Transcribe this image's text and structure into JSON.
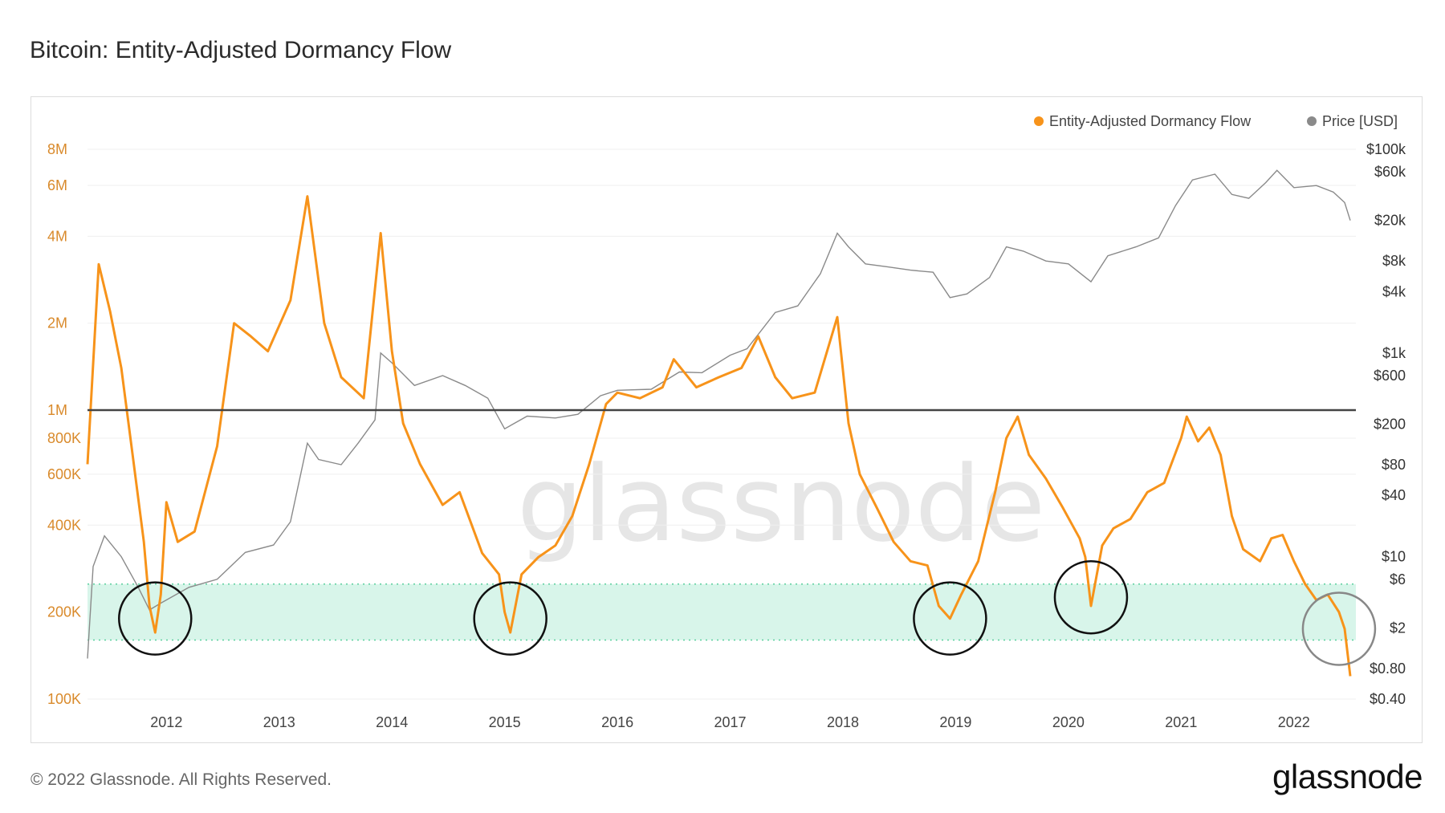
{
  "title": "Bitcoin: Entity-Adjusted Dormancy Flow",
  "footer": {
    "copyright": "© 2022 Glassnode. All Rights Reserved.",
    "logo": "glassnode"
  },
  "watermark": "glassnode",
  "colors": {
    "dormancy": "#f7931a",
    "price": "#8a8a8a",
    "band": "#d8f5ea",
    "hline": "#444444"
  },
  "chart_data": {
    "type": "line",
    "title": "Bitcoin: Entity-Adjusted Dormancy Flow",
    "legend": {
      "placement": "top-right",
      "entries": [
        "Entity-Adjusted Dormancy Flow",
        "Price [USD]"
      ]
    },
    "x_ticks": [
      "2012",
      "2013",
      "2014",
      "2015",
      "2016",
      "2017",
      "2018",
      "2019",
      "2020",
      "2021",
      "2022"
    ],
    "y_left": {
      "scale": "log",
      "range": [
        100000,
        8000000
      ],
      "ticks": [
        {
          "v": 8000000,
          "label": "8M"
        },
        {
          "v": 6000000,
          "label": "6M"
        },
        {
          "v": 4000000,
          "label": "4M"
        },
        {
          "v": 2000000,
          "label": "2M"
        },
        {
          "v": 1000000,
          "label": "1M"
        },
        {
          "v": 800000,
          "label": "800K"
        },
        {
          "v": 600000,
          "label": "600K"
        },
        {
          "v": 400000,
          "label": "400K"
        },
        {
          "v": 200000,
          "label": "200K"
        },
        {
          "v": 100000,
          "label": "100K"
        }
      ]
    },
    "y_right": {
      "scale": "log",
      "range": [
        0.4,
        100000
      ],
      "ticks": [
        {
          "v": 100000,
          "label": "$100k"
        },
        {
          "v": 60000,
          "label": "$60k"
        },
        {
          "v": 20000,
          "label": "$20k"
        },
        {
          "v": 8000,
          "label": "$8k"
        },
        {
          "v": 4000,
          "label": "$4k"
        },
        {
          "v": 1000,
          "label": "$1k"
        },
        {
          "v": 600,
          "label": "$600"
        },
        {
          "v": 200,
          "label": "$200"
        },
        {
          "v": 80,
          "label": "$80"
        },
        {
          "v": 40,
          "label": "$40"
        },
        {
          "v": 10,
          "label": "$10"
        },
        {
          "v": 6,
          "label": "$6"
        },
        {
          "v": 2,
          "label": "$2"
        },
        {
          "v": 0.8,
          "label": "$0.80"
        },
        {
          "v": 0.4,
          "label": "$0.40"
        }
      ]
    },
    "horizontal_line": 1000000,
    "band": [
      160000,
      250000
    ],
    "highlight_circles": [
      {
        "x": 2011.9,
        "y": 190000
      },
      {
        "x": 2015.05,
        "y": 190000
      },
      {
        "x": 2018.95,
        "y": 190000
      },
      {
        "x": 2020.2,
        "y": 225000
      },
      {
        "x": 2022.4,
        "y": 175000
      }
    ],
    "series": [
      {
        "name": "Entity-Adjusted Dormancy Flow",
        "points": [
          [
            2011.3,
            650000
          ],
          [
            2011.4,
            3200000
          ],
          [
            2011.5,
            2200000
          ],
          [
            2011.6,
            1400000
          ],
          [
            2011.7,
            700000
          ],
          [
            2011.8,
            350000
          ],
          [
            2011.85,
            210000
          ],
          [
            2011.9,
            170000
          ],
          [
            2011.95,
            230000
          ],
          [
            2012.0,
            480000
          ],
          [
            2012.1,
            350000
          ],
          [
            2012.25,
            380000
          ],
          [
            2012.45,
            750000
          ],
          [
            2012.6,
            2000000
          ],
          [
            2012.75,
            1800000
          ],
          [
            2012.9,
            1600000
          ],
          [
            2013.1,
            2400000
          ],
          [
            2013.25,
            5500000
          ],
          [
            2013.4,
            2000000
          ],
          [
            2013.55,
            1300000
          ],
          [
            2013.75,
            1100000
          ],
          [
            2013.9,
            4100000
          ],
          [
            2014.0,
            1600000
          ],
          [
            2014.1,
            900000
          ],
          [
            2014.25,
            650000
          ],
          [
            2014.45,
            470000
          ],
          [
            2014.6,
            520000
          ],
          [
            2014.8,
            320000
          ],
          [
            2014.95,
            270000
          ],
          [
            2015.0,
            200000
          ],
          [
            2015.05,
            170000
          ],
          [
            2015.15,
            270000
          ],
          [
            2015.3,
            310000
          ],
          [
            2015.45,
            340000
          ],
          [
            2015.6,
            430000
          ],
          [
            2015.75,
            650000
          ],
          [
            2015.9,
            1050000
          ],
          [
            2016.0,
            1150000
          ],
          [
            2016.2,
            1100000
          ],
          [
            2016.4,
            1200000
          ],
          [
            2016.5,
            1500000
          ],
          [
            2016.7,
            1200000
          ],
          [
            2016.9,
            1300000
          ],
          [
            2017.1,
            1400000
          ],
          [
            2017.25,
            1800000
          ],
          [
            2017.4,
            1300000
          ],
          [
            2017.55,
            1100000
          ],
          [
            2017.75,
            1150000
          ],
          [
            2017.95,
            2100000
          ],
          [
            2018.05,
            900000
          ],
          [
            2018.15,
            600000
          ],
          [
            2018.3,
            460000
          ],
          [
            2018.45,
            350000
          ],
          [
            2018.6,
            300000
          ],
          [
            2018.75,
            290000
          ],
          [
            2018.85,
            210000
          ],
          [
            2018.95,
            190000
          ],
          [
            2019.05,
            230000
          ],
          [
            2019.2,
            300000
          ],
          [
            2019.35,
            520000
          ],
          [
            2019.45,
            800000
          ],
          [
            2019.55,
            950000
          ],
          [
            2019.65,
            700000
          ],
          [
            2019.8,
            580000
          ],
          [
            2019.95,
            460000
          ],
          [
            2020.1,
            360000
          ],
          [
            2020.15,
            310000
          ],
          [
            2020.2,
            210000
          ],
          [
            2020.3,
            340000
          ],
          [
            2020.4,
            390000
          ],
          [
            2020.55,
            420000
          ],
          [
            2020.7,
            520000
          ],
          [
            2020.85,
            560000
          ],
          [
            2021.0,
            800000
          ],
          [
            2021.05,
            950000
          ],
          [
            2021.15,
            780000
          ],
          [
            2021.25,
            870000
          ],
          [
            2021.35,
            700000
          ],
          [
            2021.45,
            430000
          ],
          [
            2021.55,
            330000
          ],
          [
            2021.7,
            300000
          ],
          [
            2021.8,
            360000
          ],
          [
            2021.9,
            370000
          ],
          [
            2022.0,
            300000
          ],
          [
            2022.1,
            250000
          ],
          [
            2022.2,
            220000
          ],
          [
            2022.3,
            230000
          ],
          [
            2022.4,
            200000
          ],
          [
            2022.45,
            175000
          ],
          [
            2022.5,
            120000
          ]
        ]
      },
      {
        "name": "Price [USD]",
        "points": [
          [
            2011.3,
            1.0
          ],
          [
            2011.35,
            8
          ],
          [
            2011.45,
            16
          ],
          [
            2011.6,
            10
          ],
          [
            2011.75,
            5
          ],
          [
            2011.85,
            3
          ],
          [
            2011.95,
            3.5
          ],
          [
            2012.2,
            5
          ],
          [
            2012.45,
            6
          ],
          [
            2012.7,
            11
          ],
          [
            2012.95,
            13
          ],
          [
            2013.1,
            22
          ],
          [
            2013.25,
            130
          ],
          [
            2013.35,
            90
          ],
          [
            2013.55,
            80
          ],
          [
            2013.7,
            130
          ],
          [
            2013.85,
            220
          ],
          [
            2013.9,
            1000
          ],
          [
            2014.0,
            800
          ],
          [
            2014.2,
            480
          ],
          [
            2014.45,
            600
          ],
          [
            2014.65,
            480
          ],
          [
            2014.85,
            360
          ],
          [
            2015.0,
            180
          ],
          [
            2015.2,
            240
          ],
          [
            2015.45,
            230
          ],
          [
            2015.65,
            250
          ],
          [
            2015.85,
            380
          ],
          [
            2016.0,
            430
          ],
          [
            2016.3,
            440
          ],
          [
            2016.55,
            650
          ],
          [
            2016.75,
            640
          ],
          [
            2017.0,
            950
          ],
          [
            2017.15,
            1100
          ],
          [
            2017.4,
            2500
          ],
          [
            2017.6,
            2900
          ],
          [
            2017.8,
            6000
          ],
          [
            2017.95,
            15000
          ],
          [
            2018.05,
            11000
          ],
          [
            2018.2,
            7500
          ],
          [
            2018.4,
            7000
          ],
          [
            2018.6,
            6500
          ],
          [
            2018.8,
            6200
          ],
          [
            2018.95,
            3500
          ],
          [
            2019.1,
            3800
          ],
          [
            2019.3,
            5500
          ],
          [
            2019.45,
            11000
          ],
          [
            2019.6,
            10000
          ],
          [
            2019.8,
            8000
          ],
          [
            2020.0,
            7500
          ],
          [
            2020.2,
            5000
          ],
          [
            2020.35,
            9000
          ],
          [
            2020.6,
            11000
          ],
          [
            2020.8,
            13500
          ],
          [
            2020.95,
            28000
          ],
          [
            2021.1,
            50000
          ],
          [
            2021.3,
            57000
          ],
          [
            2021.45,
            36000
          ],
          [
            2021.6,
            33000
          ],
          [
            2021.75,
            47000
          ],
          [
            2021.85,
            62000
          ],
          [
            2022.0,
            42000
          ],
          [
            2022.2,
            44000
          ],
          [
            2022.35,
            38000
          ],
          [
            2022.45,
            30000
          ],
          [
            2022.5,
            20000
          ]
        ]
      }
    ]
  }
}
